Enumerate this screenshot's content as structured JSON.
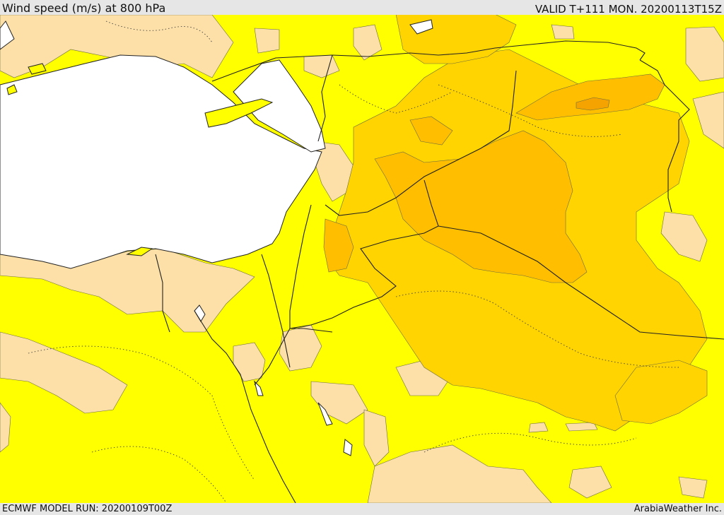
{
  "header": {
    "title": "Wind speed (m/s) at 800 hPa",
    "valid": "VALID T+111 MON. 20200113T15Z"
  },
  "footer": {
    "model_run": "ECMWF MODEL RUN: 20200109T00Z",
    "credit": "ArabiaWeather Inc."
  },
  "colors": {
    "sea": "#ffffff",
    "calm": "#fde0a8",
    "light": "#ffff00",
    "moderate": "#ffd400",
    "strong": "#ffbf00",
    "very_strong": "#f5a300",
    "border_line": "#222222"
  }
}
